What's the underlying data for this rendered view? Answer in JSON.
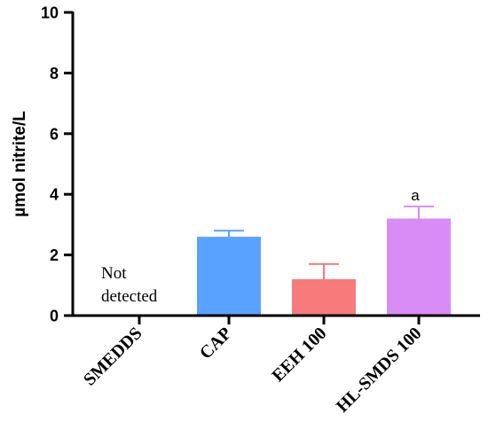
{
  "chart_data": {
    "type": "bar",
    "title": "",
    "xlabel": "",
    "ylabel": "µmol nitrite/L",
    "ylim": [
      0,
      10
    ],
    "yticks": [
      "0",
      "2",
      "4",
      "6",
      "8",
      "10"
    ],
    "categories": [
      "SMEDDS",
      "CAP",
      "EEH 100",
      "HL-SMDS 100"
    ],
    "values": [
      0,
      2.6,
      1.2,
      3.2
    ],
    "errors": [
      0,
      0.2,
      0.5,
      0.4
    ],
    "bar_colors": [
      "#ffffff",
      "#5aa2ff",
      "#f77b7b",
      "#d98cf5"
    ],
    "error_colors": [
      "#000000",
      "#5aa2ff",
      "#f77b7b",
      "#d98cf5"
    ],
    "annotations": {
      "not_detected_line1": "Not",
      "not_detected_line2": "detected",
      "significance": "a"
    }
  }
}
